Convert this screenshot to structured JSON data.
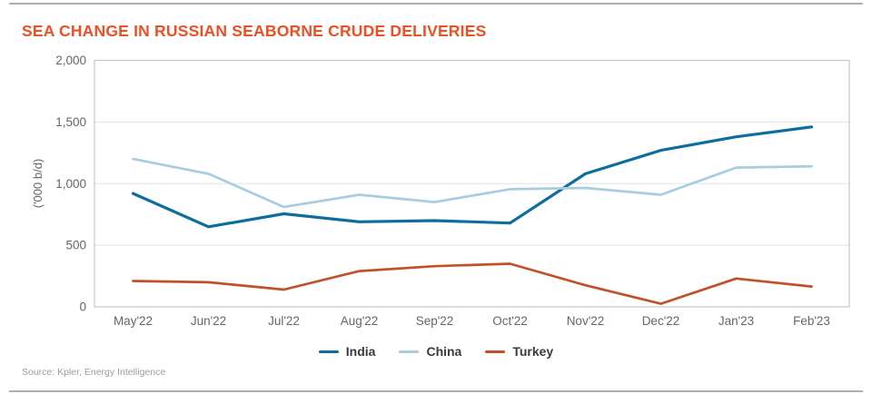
{
  "title": "SEA CHANGE IN RUSSIAN SEABORNE CRUDE DELIVERIES",
  "source": "Source: Kpler, Energy Intelligence",
  "colors": {
    "title": "#f04e23",
    "axis_text": "#64666a",
    "grid": "#e2e3e4",
    "plot_border": "#c6c7c9",
    "rule": "#b0b0b0",
    "legend_text": "#3a3a3c",
    "source_text": "#9c9c9c"
  },
  "chart_data": {
    "type": "line",
    "title": "SEA CHANGE IN RUSSIAN SEABORNE CRUDE DELIVERIES",
    "xlabel": "",
    "ylabel": "('000 b/d)",
    "ylim": [
      0,
      2000
    ],
    "yticks": [
      0,
      500,
      1000,
      1500,
      2000
    ],
    "ytick_labels": [
      "0",
      "500",
      "1,000",
      "1,500",
      "2,000"
    ],
    "grid": true,
    "legend_position": "bottom",
    "categories": [
      "May'22",
      "Jun'22",
      "Jul'22",
      "Aug'22",
      "Sep'22",
      "Oct'22",
      "Nov'22",
      "Dec'22",
      "Jan'23",
      "Feb'23"
    ],
    "series": [
      {
        "name": "India",
        "color": "#0d6e9e",
        "width": 3.2,
        "values": [
          920,
          650,
          755,
          690,
          700,
          680,
          1080,
          1270,
          1380,
          1460
        ]
      },
      {
        "name": "China",
        "color": "#a8cdde",
        "width": 2.7,
        "values": [
          1200,
          1080,
          810,
          910,
          850,
          955,
          965,
          910,
          1130,
          1140
        ]
      },
      {
        "name": "Turkey",
        "color": "#c25028",
        "width": 2.7,
        "values": [
          210,
          200,
          140,
          290,
          330,
          350,
          175,
          25,
          230,
          165
        ]
      }
    ]
  }
}
